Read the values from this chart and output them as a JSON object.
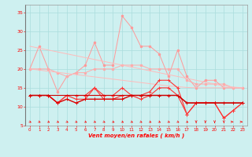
{
  "title": "",
  "xlabel": "Vent moyen/en rafales ( km/h )",
  "background_color": "#cef0f0",
  "grid_color": "#aadddd",
  "x_ticks": [
    0,
    1,
    2,
    3,
    4,
    5,
    6,
    7,
    8,
    9,
    10,
    11,
    12,
    13,
    14,
    15,
    16,
    17,
    18,
    19,
    20,
    21,
    22,
    23
  ],
  "ylim": [
    5,
    37
  ],
  "y_ticks": [
    5,
    10,
    15,
    20,
    25,
    30,
    35
  ],
  "series": [
    {
      "name": "rafales_peak",
      "color": "#ff9999",
      "linewidth": 0.7,
      "marker": "o",
      "markersize": 1.8,
      "data": [
        20,
        26,
        20,
        14,
        18,
        19,
        21,
        27,
        21,
        21,
        34,
        31,
        26,
        26,
        24,
        18,
        25,
        18,
        15,
        17,
        17,
        15,
        15,
        15
      ]
    },
    {
      "name": "rafales_avg",
      "color": "#ffaaaa",
      "linewidth": 0.7,
      "marker": "o",
      "markersize": 1.8,
      "data": [
        20,
        20,
        20,
        19,
        18,
        19,
        19,
        20,
        20,
        20,
        21,
        21,
        21,
        20,
        20,
        20,
        20,
        17,
        16,
        16,
        16,
        16,
        15,
        15
      ]
    },
    {
      "name": "trend_light_upper",
      "color": "#ffbbbb",
      "linewidth": 0.7,
      "marker": null,
      "data": [
        26,
        25.5,
        25,
        24.5,
        24,
        23.5,
        23,
        22.5,
        22,
        21.5,
        21,
        20.5,
        20,
        19.5,
        19,
        18.5,
        18,
        17.5,
        17,
        16.5,
        16,
        15.5,
        15.2,
        15
      ]
    },
    {
      "name": "trend_light_lower",
      "color": "#ffbbbb",
      "linewidth": 0.7,
      "marker": null,
      "data": [
        20,
        19.7,
        19.4,
        19.1,
        18.8,
        18.5,
        18.2,
        17.9,
        17.6,
        17.3,
        17,
        16.7,
        16.4,
        16.1,
        15.8,
        15.5,
        15.3,
        15.1,
        15,
        15,
        15,
        15,
        15,
        15
      ]
    },
    {
      "name": "vent_moyen1",
      "color": "#ff3333",
      "linewidth": 0.8,
      "marker": "+",
      "markersize": 3.0,
      "data": [
        13,
        13,
        13,
        11,
        13,
        13,
        13,
        15,
        13,
        13,
        15,
        13,
        13,
        14,
        17,
        17,
        15,
        8,
        11,
        11,
        11,
        7,
        9,
        11
      ]
    },
    {
      "name": "vent_moyen2",
      "color": "#ff3333",
      "linewidth": 0.8,
      "marker": "+",
      "markersize": 3.0,
      "data": [
        13,
        13,
        13,
        11,
        13,
        12,
        12,
        15,
        12,
        12,
        13,
        13,
        12,
        13,
        15,
        15,
        13,
        8,
        11,
        11,
        11,
        7,
        9,
        11
      ]
    },
    {
      "name": "vent_min",
      "color": "#dd0000",
      "linewidth": 1.0,
      "marker": "+",
      "markersize": 3.0,
      "data": [
        13,
        13,
        13,
        11,
        12,
        11,
        12,
        12,
        12,
        12,
        12,
        13,
        13,
        13,
        13,
        13,
        13,
        11,
        11,
        11,
        11,
        11,
        11,
        11
      ]
    },
    {
      "name": "trend_dark",
      "color": "#cc0000",
      "linewidth": 0.8,
      "marker": null,
      "data": [
        13,
        13,
        13,
        13,
        13,
        13,
        13,
        13,
        13,
        13,
        13,
        13,
        13,
        13,
        13,
        13,
        13,
        11,
        11,
        11,
        11,
        11,
        11,
        11
      ]
    }
  ],
  "wind_arrows_angles": [
    225,
    225,
    225,
    225,
    225,
    225,
    225,
    225,
    225,
    225,
    225,
    225,
    225,
    225,
    225,
    225,
    225,
    225,
    180,
    180,
    180,
    180,
    270,
    270
  ]
}
